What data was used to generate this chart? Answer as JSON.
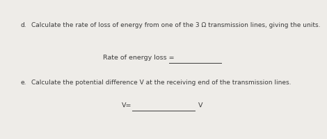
{
  "background_color": "#eeece8",
  "part_d_label": "d.",
  "part_d_text": "Calculate the rate of loss of energy from one of the 3 Ω transmission lines, giving the units.",
  "rate_label": "Rate of energy loss =",
  "part_e_label": "e.",
  "part_e_text": "Calculate the potential difference V at the receiving end of the transmission lines.",
  "v_label": "V=",
  "v_unit": "V",
  "text_fontsize": 6.5,
  "answer_fontsize": 6.8,
  "line_color": "#3a3a3a",
  "text_color": "#3a3a3a"
}
